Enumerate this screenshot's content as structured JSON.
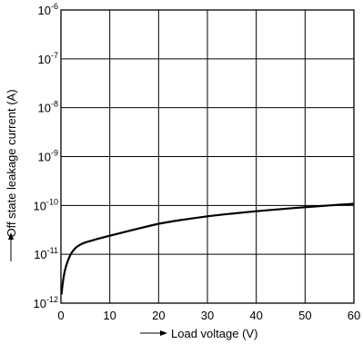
{
  "chart_data": {
    "type": "line",
    "title": "",
    "xlabel": "Load voltage (V)",
    "ylabel": "Off state leakage current (A)",
    "xlim": [
      0,
      60
    ],
    "ylim": [
      1e-12,
      1e-06
    ],
    "yscale": "log",
    "grid": true,
    "legend": "none",
    "x_ticks": [
      "0",
      "10",
      "20",
      "30",
      "40",
      "50",
      "60"
    ],
    "y_ticks": [
      {
        "base": "10",
        "exp": "-12"
      },
      {
        "base": "10",
        "exp": "-11"
      },
      {
        "base": "10",
        "exp": "-10"
      },
      {
        "base": "10",
        "exp": "-9"
      },
      {
        "base": "10",
        "exp": "-8"
      },
      {
        "base": "10",
        "exp": "-7"
      },
      {
        "base": "10",
        "exp": "-6"
      }
    ],
    "series": [
      {
        "x": [
          0.1,
          0.5,
          1,
          2,
          3,
          4,
          5,
          7,
          10,
          15,
          20,
          25,
          30,
          35,
          40,
          45,
          50,
          55,
          60
        ],
        "y": [
          1.5e-12,
          3.2e-12,
          5.5e-12,
          1e-11,
          1.35e-11,
          1.58e-11,
          1.75e-11,
          2e-11,
          2.4e-11,
          3.2e-11,
          4.2e-11,
          5.1e-11,
          6e-11,
          6.8e-11,
          7.6e-11,
          8.4e-11,
          9.2e-11,
          1e-10,
          1.08e-10
        ]
      }
    ]
  }
}
